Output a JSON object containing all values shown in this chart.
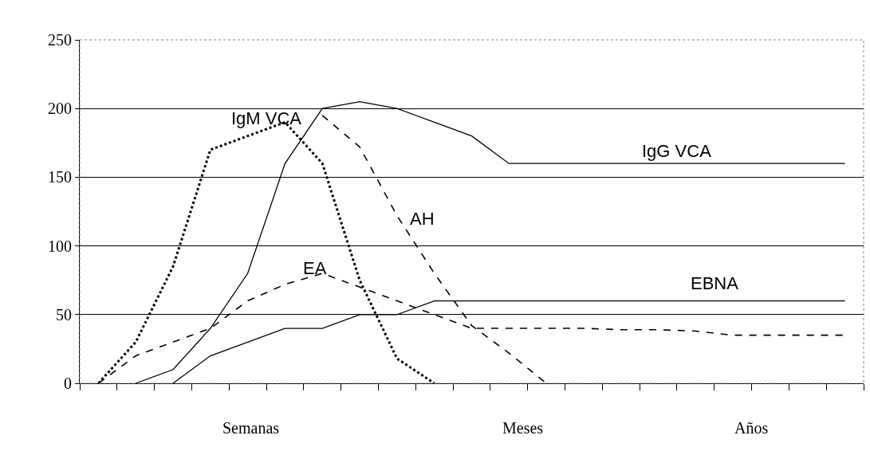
{
  "chart_data": {
    "type": "line",
    "categories": [
      null,
      null,
      null,
      null,
      null,
      null,
      null,
      null,
      null,
      null,
      null,
      null,
      null,
      null,
      null,
      null,
      null,
      null,
      null,
      null,
      null
    ],
    "series": [
      {
        "name": "IgM VCA",
        "color": "#000000",
        "line_style": "dotted",
        "values": [
          0,
          30,
          85,
          170,
          180,
          190,
          160,
          75,
          18,
          0,
          null,
          null,
          null,
          null,
          null,
          null,
          null,
          null,
          null,
          null,
          null
        ]
      },
      {
        "name": "IgG VCA",
        "color": "#000000",
        "line_style": "solid",
        "values": [
          null,
          0,
          10,
          40,
          80,
          160,
          200,
          205,
          200,
          190,
          180,
          160,
          160,
          160,
          160,
          160,
          160,
          160,
          160,
          160,
          160
        ]
      },
      {
        "name": "EA",
        "color": "#000000",
        "line_style": "dashed",
        "values": [
          0,
          20,
          30,
          40,
          60,
          72,
          80,
          70,
          60,
          50,
          40,
          40,
          40,
          40,
          39,
          39,
          38,
          35,
          35,
          35,
          35
        ]
      },
      {
        "name": "AH",
        "color": "#000000",
        "line_style": "dashed",
        "values": [
          null,
          null,
          null,
          null,
          null,
          null,
          195,
          172,
          122,
          80,
          42,
          22,
          0,
          null,
          null,
          null,
          null,
          null,
          null,
          null,
          null
        ]
      },
      {
        "name": "EBNA",
        "color": "#000000",
        "line_style": "solid",
        "values": [
          null,
          null,
          0,
          20,
          30,
          40,
          40,
          50,
          50,
          60,
          60,
          60,
          60,
          60,
          60,
          60,
          60,
          60,
          60,
          60,
          60
        ]
      }
    ],
    "ylim": [
      0,
      250
    ],
    "yticks": [
      0,
      50,
      100,
      150,
      200,
      250
    ],
    "grid": "y",
    "legend": false,
    "tick_labels": "y",
    "marker": "none",
    "annotations": [
      "Semanas",
      "Meses",
      "Años"
    ]
  }
}
